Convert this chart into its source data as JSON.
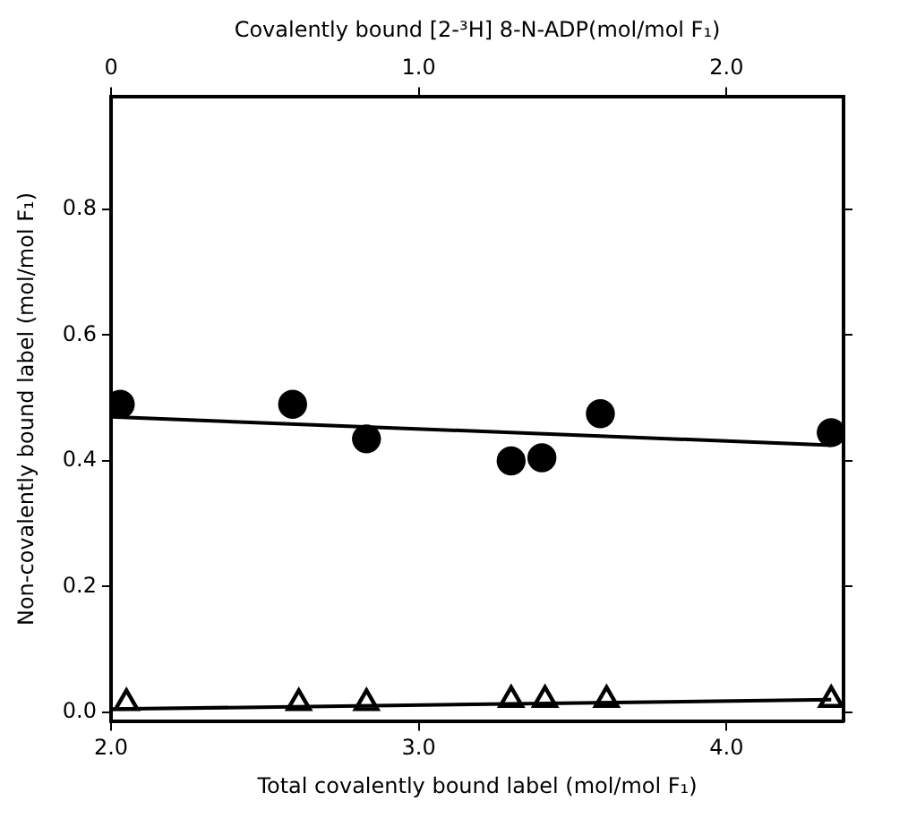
{
  "chart_data": {
    "type": "scatter",
    "xlabel": "Total covalently bound label (mol/mol F₁)",
    "ylabel": "Non-covalently bound label (mol/mol F₁)",
    "x2label": "Covalently bound [2-³H] 8-N-ADP(mol/mol F₁)",
    "xlim": [
      2.0,
      4.38
    ],
    "xticks": [
      {
        "value": 2.0,
        "label": "2.0"
      },
      {
        "value": 3.0,
        "label": "3.0"
      },
      {
        "value": 4.0,
        "label": "4.0"
      }
    ],
    "x2lim": [
      0,
      2.38
    ],
    "x2ticks": [
      {
        "value": 0,
        "label": "0"
      },
      {
        "value": 1.0,
        "label": "1.0"
      },
      {
        "value": 2.0,
        "label": "2.0"
      }
    ],
    "ylim": [
      -0.015,
      0.98
    ],
    "yticks": [
      {
        "value": 0,
        "label": "0.0"
      },
      {
        "value": 0.2,
        "label": "0.2"
      },
      {
        "value": 0.4,
        "label": "0.4"
      },
      {
        "value": 0.6,
        "label": "0.6"
      },
      {
        "value": 0.8,
        "label": "0.8"
      }
    ],
    "grid": false,
    "legend": false,
    "series": [
      {
        "marker": "circle",
        "color": "#000000",
        "x": [
          2.03,
          2.59,
          2.83,
          3.3,
          3.4,
          3.59,
          4.34
        ],
        "values": [
          0.49,
          0.49,
          0.435,
          0.4,
          0.405,
          0.475,
          0.445
        ]
      },
      {
        "marker": "triangle",
        "color": "#000000",
        "x": [
          2.05,
          2.61,
          2.83,
          3.3,
          3.41,
          3.61,
          4.34
        ],
        "values": [
          0.015,
          0.015,
          0.015,
          0.02,
          0.02,
          0.02,
          0.02
        ]
      },
      {
        "type": "line",
        "marker": "none",
        "line_style": "solid",
        "color": "#000000",
        "x": [
          2.0,
          4.34
        ],
        "values": [
          0.47,
          0.425
        ]
      },
      {
        "type": "line",
        "marker": "none",
        "line_style": "solid",
        "color": "#000000",
        "x": [
          2.0,
          4.34
        ],
        "values": [
          0.005,
          0.02
        ]
      }
    ]
  }
}
